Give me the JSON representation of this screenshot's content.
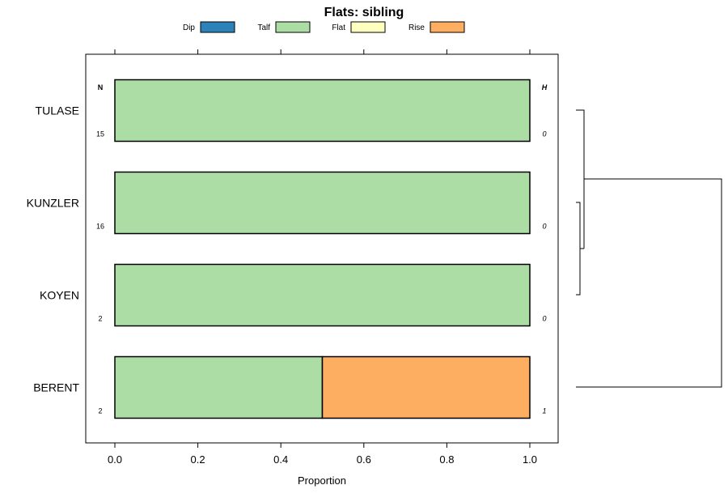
{
  "chart_data": {
    "type": "bar",
    "orientation": "horizontal",
    "stacked": true,
    "title": "Flats: sibling",
    "xlabel": "Proportion",
    "ylabel": "",
    "xlim": [
      -0.07,
      1.07
    ],
    "x_ticks": [
      0.0,
      0.2,
      0.4,
      0.6,
      0.8,
      1.0
    ],
    "x_tick_labels": [
      "0.0",
      "0.2",
      "0.4",
      "0.6",
      "0.8",
      "1.0"
    ],
    "legend": [
      {
        "name": "Dip",
        "color": "#2b83ba"
      },
      {
        "name": "Talf",
        "color": "#abdda4"
      },
      {
        "name": "Flat",
        "color": "#ffffbf"
      },
      {
        "name": "Rise",
        "color": "#fdae61"
      }
    ],
    "categories": [
      "TULASE",
      "KUNZLER",
      "KOYEN",
      "BERENT"
    ],
    "series": [
      {
        "name": "Dip",
        "values": [
          0,
          0,
          0,
          0
        ]
      },
      {
        "name": "Talf",
        "values": [
          1.0,
          1.0,
          1.0,
          0.5
        ]
      },
      {
        "name": "Flat",
        "values": [
          0,
          0,
          0,
          0
        ]
      },
      {
        "name": "Rise",
        "values": [
          0,
          0,
          0,
          0.5
        ]
      }
    ],
    "n_header": "N",
    "h_header": "H",
    "n_values": [
      "15",
      "16",
      "2",
      "2"
    ],
    "h_values": [
      "0",
      "0",
      "0",
      "1"
    ],
    "dendrogram": "present"
  }
}
